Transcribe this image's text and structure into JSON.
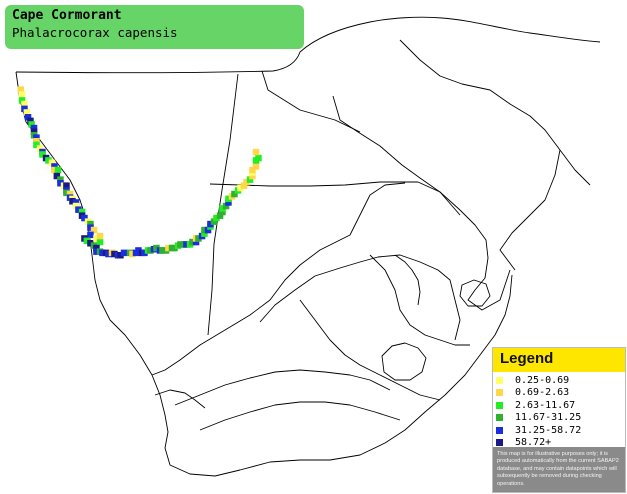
{
  "title": {
    "common_name": "Cape Cormorant",
    "scientific_name": "Phalacrocorax capensis"
  },
  "legend": {
    "title": "Legend",
    "items": [
      {
        "label": "0.25-0.69",
        "color": "#ffff66"
      },
      {
        "label": "0.69-2.63",
        "color": "#ffd84a"
      },
      {
        "label": "2.63-11.67",
        "color": "#22ee22"
      },
      {
        "label": "11.67-31.25",
        "color": "#30b030"
      },
      {
        "label": "31.25-58.72",
        "color": "#1a2ee0"
      },
      {
        "label": "58.72+",
        "color": "#1a1a80"
      }
    ],
    "disclaimer": "This map is for illustrative purposes only; it is produced automatically from the current SABAP2 database, and may contain datapoints which will subsequently be removed during checking operations."
  },
  "map": {
    "border_color": "#000000",
    "observations": [
      {
        "x": 17.8,
        "y": -29.2,
        "level": 1
      },
      {
        "x": 17.9,
        "y": -29.6,
        "level": 0
      },
      {
        "x": 17.9,
        "y": -30.1,
        "level": 2
      },
      {
        "x": 18.1,
        "y": -30.4,
        "level": 0
      },
      {
        "x": 18.1,
        "y": -30.8,
        "level": 4
      },
      {
        "x": 18.3,
        "y": -31.1,
        "level": 0
      },
      {
        "x": 18.4,
        "y": -31.5,
        "level": 4
      },
      {
        "x": 18.6,
        "y": -31.8,
        "level": 5
      },
      {
        "x": 18.7,
        "y": -32.1,
        "level": 2
      },
      {
        "x": 18.9,
        "y": -32.4,
        "level": 4
      },
      {
        "x": 18.9,
        "y": -32.7,
        "level": 5
      },
      {
        "x": 18.9,
        "y": -33.0,
        "level": 3
      },
      {
        "x": 19.1,
        "y": -33.2,
        "level": 4
      },
      {
        "x": 19.1,
        "y": -33.5,
        "level": 1
      },
      {
        "x": 19.1,
        "y": -33.8,
        "level": 2
      },
      {
        "x": 19.4,
        "y": -34.1,
        "level": 0
      },
      {
        "x": 19.6,
        "y": -34.4,
        "level": 4
      },
      {
        "x": 19.6,
        "y": -34.6,
        "level": 2
      },
      {
        "x": 19.9,
        "y": -34.9,
        "level": 5
      },
      {
        "x": 20.1,
        "y": -35.1,
        "level": 2
      },
      {
        "x": 20.4,
        "y": -35.3,
        "level": 0
      },
      {
        "x": 20.6,
        "y": -35.6,
        "level": 4
      },
      {
        "x": 20.6,
        "y": -35.9,
        "level": 1
      },
      {
        "x": 20.9,
        "y": -35.9,
        "level": 2
      },
      {
        "x": 20.8,
        "y": -36.4,
        "level": 5
      },
      {
        "x": 21.1,
        "y": -36.7,
        "level": 3
      },
      {
        "x": 21.1,
        "y": -37.0,
        "level": 4
      },
      {
        "x": 21.4,
        "y": -37.2,
        "level": 0
      },
      {
        "x": 21.6,
        "y": -37.2,
        "level": 5
      },
      {
        "x": 21.6,
        "y": -37.6,
        "level": 4
      },
      {
        "x": 21.6,
        "y": -37.8,
        "level": 3
      },
      {
        "x": 21.9,
        "y": -37.9,
        "level": 1
      },
      {
        "x": 21.9,
        "y": -38.2,
        "level": 4
      },
      {
        "x": 22.1,
        "y": -38.3,
        "level": 0
      },
      {
        "x": 22.1,
        "y": -38.5,
        "level": 5
      },
      {
        "x": 22.4,
        "y": -38.6,
        "level": 4
      },
      {
        "x": 22.4,
        "y": -38.9,
        "level": 0
      },
      {
        "x": 22.6,
        "y": -39.2,
        "level": 4
      },
      {
        "x": 22.9,
        "y": -39.4,
        "level": 2
      },
      {
        "x": 22.9,
        "y": -39.7,
        "level": 5
      },
      {
        "x": 23.1,
        "y": -39.9,
        "level": 4
      },
      {
        "x": 23.4,
        "y": -40.2,
        "level": 0
      },
      {
        "x": 23.6,
        "y": -40.4,
        "level": 3
      },
      {
        "x": 23.6,
        "y": -40.7,
        "level": 4
      },
      {
        "x": 23.9,
        "y": -40.9,
        "level": 1
      },
      {
        "x": 23.6,
        "y": -41.3,
        "level": 4
      },
      {
        "x": 23.1,
        "y": -41.6,
        "level": 5
      },
      {
        "x": 23.3,
        "y": -41.8,
        "level": 2
      },
      {
        "x": 23.6,
        "y": -42.0,
        "level": 5
      },
      {
        "x": 23.9,
        "y": -42.2,
        "level": 3
      },
      {
        "x": 24.1,
        "y": -41.6,
        "level": 0
      },
      {
        "x": 24.4,
        "y": -41.9,
        "level": 2
      },
      {
        "x": 24.4,
        "y": -41.4,
        "level": 1
      },
      {
        "x": 24.1,
        "y": -42.4,
        "level": 5
      },
      {
        "x": 24.1,
        "y": -42.7,
        "level": 4
      },
      {
        "x": 24.4,
        "y": -42.7,
        "level": 3
      },
      {
        "x": 24.6,
        "y": -42.8,
        "level": 4
      },
      {
        "x": 24.9,
        "y": -42.8,
        "level": 5
      },
      {
        "x": 25.1,
        "y": -42.9,
        "level": 4
      },
      {
        "x": 25.4,
        "y": -42.8,
        "level": 1
      },
      {
        "x": 25.6,
        "y": -42.9,
        "level": 5
      },
      {
        "x": 25.9,
        "y": -43.0,
        "level": 4
      },
      {
        "x": 26.1,
        "y": -43.0,
        "level": 5
      },
      {
        "x": 26.4,
        "y": -42.8,
        "level": 4
      },
      {
        "x": 26.9,
        "y": -42.8,
        "level": 3
      },
      {
        "x": 27.1,
        "y": -42.9,
        "level": 1
      },
      {
        "x": 27.4,
        "y": -42.8,
        "level": 4
      },
      {
        "x": 27.6,
        "y": -42.6,
        "level": 4
      },
      {
        "x": 27.9,
        "y": -42.8,
        "level": 5
      },
      {
        "x": 28.1,
        "y": -42.8,
        "level": 4
      },
      {
        "x": 28.4,
        "y": -42.6,
        "level": 2
      },
      {
        "x": 28.6,
        "y": -42.6,
        "level": 3
      },
      {
        "x": 28.9,
        "y": -42.5,
        "level": 4
      },
      {
        "x": 29.1,
        "y": -42.4,
        "level": 3
      },
      {
        "x": 29.4,
        "y": -42.6,
        "level": 4
      },
      {
        "x": 29.6,
        "y": -42.6,
        "level": 3
      },
      {
        "x": 29.9,
        "y": -42.6,
        "level": 3
      },
      {
        "x": 30.1,
        "y": -42.4,
        "level": 1
      },
      {
        "x": 30.4,
        "y": -42.4,
        "level": 3
      },
      {
        "x": 30.6,
        "y": -42.4,
        "level": 3
      },
      {
        "x": 30.9,
        "y": -42.2,
        "level": 2
      },
      {
        "x": 31.1,
        "y": -42.1,
        "level": 3
      },
      {
        "x": 31.4,
        "y": -42.1,
        "level": 3
      },
      {
        "x": 31.6,
        "y": -42.1,
        "level": 4
      },
      {
        "x": 31.9,
        "y": -42.1,
        "level": 2
      },
      {
        "x": 32.1,
        "y": -41.9,
        "level": 3
      },
      {
        "x": 32.4,
        "y": -41.9,
        "level": 4
      },
      {
        "x": 32.4,
        "y": -41.6,
        "level": 1
      },
      {
        "x": 32.6,
        "y": -41.6,
        "level": 3
      },
      {
        "x": 32.9,
        "y": -41.4,
        "level": 4
      },
      {
        "x": 33.1,
        "y": -41.2,
        "level": 2
      },
      {
        "x": 33.1,
        "y": -40.9,
        "level": 3
      },
      {
        "x": 33.4,
        "y": -40.9,
        "level": 4
      },
      {
        "x": 33.6,
        "y": -40.6,
        "level": 2
      },
      {
        "x": 33.6,
        "y": -40.4,
        "level": 4
      },
      {
        "x": 33.9,
        "y": -40.2,
        "level": 3
      },
      {
        "x": 34.1,
        "y": -39.9,
        "level": 2
      },
      {
        "x": 34.4,
        "y": -39.7,
        "level": 3
      },
      {
        "x": 34.6,
        "y": -39.4,
        "level": 3
      },
      {
        "x": 34.6,
        "y": -39.1,
        "level": 2
      },
      {
        "x": 34.9,
        "y": -38.9,
        "level": 3
      },
      {
        "x": 35.1,
        "y": -38.6,
        "level": 4
      },
      {
        "x": 35.1,
        "y": -38.3,
        "level": 2
      },
      {
        "x": 35.4,
        "y": -38.1,
        "level": 1
      },
      {
        "x": 35.6,
        "y": -37.9,
        "level": 3
      },
      {
        "x": 35.9,
        "y": -37.6,
        "level": 2
      },
      {
        "x": 36.1,
        "y": -37.4,
        "level": 0
      },
      {
        "x": 36.4,
        "y": -37.2,
        "level": 1
      },
      {
        "x": 36.6,
        "y": -36.9,
        "level": 1
      },
      {
        "x": 36.9,
        "y": -36.7,
        "level": 2
      },
      {
        "x": 37.1,
        "y": -36.4,
        "level": 1
      },
      {
        "x": 37.1,
        "y": -36.1,
        "level": 0
      },
      {
        "x": 37.1,
        "y": -35.9,
        "level": 1
      },
      {
        "x": 37.4,
        "y": -35.6,
        "level": 1
      },
      {
        "x": 37.4,
        "y": -35.1,
        "level": 2
      },
      {
        "x": 37.6,
        "y": -34.9,
        "level": 2
      },
      {
        "x": 37.4,
        "y": -34.4,
        "level": 1
      }
    ]
  }
}
